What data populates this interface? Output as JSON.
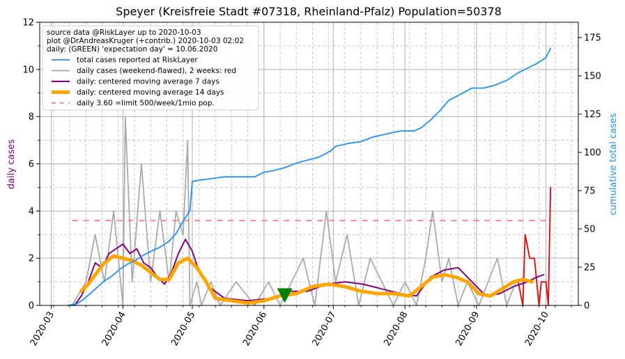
{
  "chart_data": {
    "type": "line",
    "title": "Speyer (Kreisfreie Stadt #07318, Rheinland-Pfalz) Population=50378",
    "ylabel_left": "daily cases",
    "ylabel_right": "cumulative total cases",
    "ylim_left": [
      0,
      12
    ],
    "ylim_right": [
      0,
      185
    ],
    "yticks_left": [
      "0",
      "2",
      "4",
      "6",
      "8",
      "10",
      "12"
    ],
    "yticks_right": [
      "0",
      "25",
      "50",
      "75",
      "100",
      "125",
      "150",
      "175"
    ],
    "xlim": [
      "2020-02-25",
      "2020-10-15"
    ],
    "xticks": [
      "2020-03",
      "2020-04",
      "2020-05",
      "2020-06",
      "2020-07",
      "2020-08",
      "2020-09",
      "2020-10"
    ],
    "grid": true,
    "legend_placement": "top-left",
    "info_lines": [
      "source data @RiskLayer up to 2020-10-03",
      "plot @DrAndreasKruger (+contrib.) 2020-10-03 02:02",
      "daily: (GREEN) 'expectation day' = 10.06.2020"
    ],
    "expectation_day": "2020-06-10",
    "limit_value": 3.6,
    "series": [
      {
        "name": "total cases reported at RiskLayer",
        "color": "#1e90ff",
        "axis": "right",
        "x": [
          "2020-03-08",
          "2020-03-12",
          "2020-03-15",
          "2020-03-18",
          "2020-03-21",
          "2020-03-24",
          "2020-03-27",
          "2020-03-31",
          "2020-04-03",
          "2020-04-07",
          "2020-04-10",
          "2020-04-14",
          "2020-04-17",
          "2020-04-21",
          "2020-04-24",
          "2020-04-27",
          "2020-04-30",
          "2020-05-01",
          "2020-05-05",
          "2020-05-10",
          "2020-05-15",
          "2020-05-20",
          "2020-05-28",
          "2020-06-01",
          "2020-06-05",
          "2020-06-10",
          "2020-06-15",
          "2020-06-20",
          "2020-06-25",
          "2020-06-30",
          "2020-07-02",
          "2020-07-08",
          "2020-07-13",
          "2020-07-18",
          "2020-07-24",
          "2020-07-30",
          "2020-08-05",
          "2020-08-08",
          "2020-08-12",
          "2020-08-16",
          "2020-08-20",
          "2020-08-25",
          "2020-08-30",
          "2020-09-04",
          "2020-09-09",
          "2020-09-14",
          "2020-09-19",
          "2020-09-23",
          "2020-09-27",
          "2020-10-01",
          "2020-10-03"
        ],
        "values": [
          0,
          1,
          4,
          8,
          12,
          16,
          19,
          24,
          27,
          30,
          33,
          36,
          38,
          42,
          47,
          55,
          62,
          81,
          82,
          83,
          84,
          84,
          84,
          87,
          88,
          90,
          93,
          95,
          97,
          101,
          104,
          106,
          107,
          110,
          112,
          114,
          114,
          116,
          121,
          127,
          134,
          138,
          142,
          142,
          144,
          147,
          152,
          155,
          158,
          162,
          168
        ]
      },
      {
        "name": "daily cases (weekend-flawed), 2 weeks: red",
        "color": "#aaaaaa",
        "axis": "left",
        "x": [
          "2020-03-10",
          "2020-03-16",
          "2020-03-20",
          "2020-03-24",
          "2020-03-28",
          "2020-03-30",
          "2020-04-01",
          "2020-04-02",
          "2020-04-05",
          "2020-04-09",
          "2020-04-13",
          "2020-04-17",
          "2020-04-21",
          "2020-04-24",
          "2020-04-27",
          "2020-04-29",
          "2020-04-30",
          "2020-05-03",
          "2020-05-05",
          "2020-05-09",
          "2020-05-13",
          "2020-05-20",
          "2020-05-28",
          "2020-06-03",
          "2020-06-08",
          "2020-06-13",
          "2020-06-18",
          "2020-06-23",
          "2020-06-28",
          "2020-07-02",
          "2020-07-07",
          "2020-07-12",
          "2020-07-17",
          "2020-07-22",
          "2020-07-27",
          "2020-08-01",
          "2020-08-06",
          "2020-08-10",
          "2020-08-13",
          "2020-08-17",
          "2020-08-20",
          "2020-08-24",
          "2020-08-28",
          "2020-09-02",
          "2020-09-06",
          "2020-09-10",
          "2020-09-14",
          "2020-09-18"
        ],
        "values": [
          0,
          1,
          3,
          1,
          4,
          2,
          0,
          8,
          1,
          6,
          1,
          4,
          1,
          4,
          3,
          7,
          0,
          1,
          0,
          1,
          0,
          1,
          0,
          1,
          0,
          1,
          2,
          0,
          4,
          1,
          3,
          0,
          2,
          1,
          0,
          1,
          0,
          2,
          4,
          1,
          2,
          0,
          1,
          0,
          1,
          2,
          0,
          1
        ]
      },
      {
        "name": "daily cases (weekend-flawed), 2 weeks: red",
        "color": "#e0151b",
        "axis": "left",
        "x": [
          "2020-09-19",
          "2020-09-21",
          "2020-09-22",
          "2020-09-24",
          "2020-09-26",
          "2020-09-28",
          "2020-09-29",
          "2020-10-01",
          "2020-10-02",
          "2020-10-03"
        ],
        "values": [
          1,
          0,
          3,
          2,
          2,
          0,
          1,
          1,
          0,
          5
        ]
      },
      {
        "name": "daily: centered moving average 7 days",
        "color": "#800080",
        "axis": "left",
        "x": [
          "2020-03-11",
          "2020-03-14",
          "2020-03-17",
          "2020-03-20",
          "2020-03-23",
          "2020-03-26",
          "2020-03-29",
          "2020-04-01",
          "2020-04-04",
          "2020-04-07",
          "2020-04-10",
          "2020-04-13",
          "2020-04-16",
          "2020-04-19",
          "2020-04-22",
          "2020-04-25",
          "2020-04-28",
          "2020-05-01",
          "2020-05-04",
          "2020-05-08",
          "2020-05-15",
          "2020-05-25",
          "2020-06-04",
          "2020-06-12",
          "2020-06-20",
          "2020-06-28",
          "2020-07-06",
          "2020-07-14",
          "2020-07-22",
          "2020-07-30",
          "2020-08-06",
          "2020-08-12",
          "2020-08-18",
          "2020-08-24",
          "2020-08-30",
          "2020-09-05",
          "2020-09-11",
          "2020-09-17",
          "2020-09-23",
          "2020-09-27",
          "2020-09-30"
        ],
        "values": [
          0,
          0.4,
          1.0,
          1.8,
          1.6,
          2.2,
          2.4,
          2.6,
          2.2,
          2.4,
          1.8,
          1.6,
          1.2,
          0.9,
          1.4,
          2.2,
          2.8,
          2.3,
          1.4,
          0.8,
          0.3,
          0.2,
          0.3,
          0.6,
          0.6,
          0.9,
          1.0,
          0.9,
          0.7,
          0.5,
          0.4,
          1.2,
          1.5,
          1.6,
          1.0,
          0.4,
          0.5,
          0.8,
          1.0,
          1.2,
          1.3
        ]
      },
      {
        "name": "daily: centered moving average 14 days",
        "color": "#ffa500",
        "axis": "left",
        "x": [
          "2020-03-14",
          "2020-03-17",
          "2020-03-20",
          "2020-03-24",
          "2020-03-28",
          "2020-04-01",
          "2020-04-05",
          "2020-04-09",
          "2020-04-13",
          "2020-04-17",
          "2020-04-21",
          "2020-04-25",
          "2020-04-29",
          "2020-05-03",
          "2020-05-07",
          "2020-05-11",
          "2020-05-18",
          "2020-05-25",
          "2020-06-01",
          "2020-06-08",
          "2020-06-15",
          "2020-06-22",
          "2020-06-29",
          "2020-07-06",
          "2020-07-13",
          "2020-07-20",
          "2020-07-27",
          "2020-08-03",
          "2020-08-08",
          "2020-08-13",
          "2020-08-18",
          "2020-08-23",
          "2020-08-28",
          "2020-09-02",
          "2020-09-07",
          "2020-09-12",
          "2020-09-17",
          "2020-09-21",
          "2020-09-25"
        ],
        "values": [
          0.6,
          0.9,
          1.3,
          1.8,
          2.1,
          2.0,
          1.9,
          1.7,
          1.4,
          1.1,
          1.1,
          1.8,
          2.0,
          1.6,
          1.0,
          0.3,
          0.2,
          0.1,
          0.2,
          0.4,
          0.5,
          0.8,
          0.9,
          0.8,
          0.6,
          0.5,
          0.5,
          0.4,
          0.8,
          1.2,
          1.3,
          1.2,
          1.0,
          0.5,
          0.4,
          0.7,
          1.0,
          1.1,
          1.0
        ]
      },
      {
        "name": "daily 3.60 =limit 500/week/1mio pop.",
        "color": "#ff6a6a",
        "axis": "left",
        "x": [
          "2020-03-10",
          "2020-10-03"
        ],
        "values": [
          3.6,
          3.6
        ]
      }
    ]
  }
}
